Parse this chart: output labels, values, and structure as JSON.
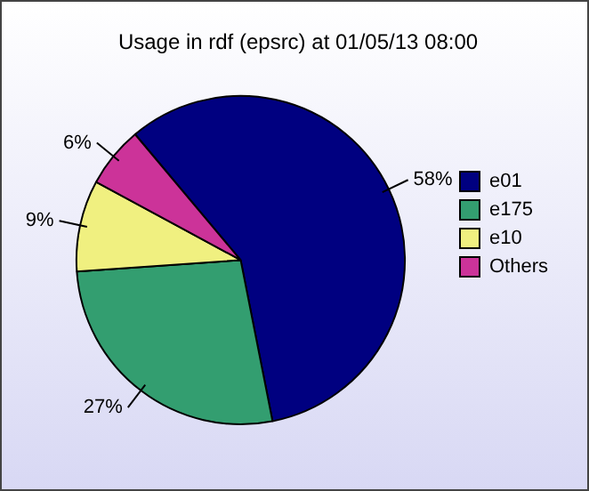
{
  "chart_data": {
    "type": "pie",
    "title": "Usage in rdf (epsrc) at 01/05/13 08:00",
    "categories": [
      "e01",
      "e175",
      "e10",
      "Others"
    ],
    "values": [
      58,
      27,
      9,
      6
    ],
    "colors": [
      "#000080",
      "#339e70",
      "#f0f080",
      "#cc3399"
    ],
    "value_labels": [
      "58%",
      "27%",
      "9%",
      "6%"
    ],
    "legend": "right"
  }
}
